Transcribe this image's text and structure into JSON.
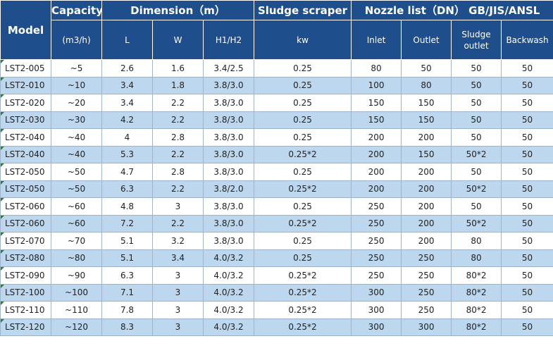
{
  "header": {
    "model": "Model",
    "capacity": "Capacity",
    "dimension": "Dimension（m）",
    "sludge_scraper": "Sludge scraper",
    "nozzle_list": "Nozzle list（DN） GB/JIS/ANSL",
    "capacity_unit": "(m3/h)",
    "l": "L",
    "w": "W",
    "h": "H1/H2",
    "kw": "kw",
    "inlet": "Inlet",
    "outlet": "Outlet",
    "sludge_outlet_1": "Sludge",
    "sludge_outlet_2": "outlet",
    "backwash": "Backwash"
  },
  "rows": [
    [
      "LST2-005",
      "~5",
      "2.6",
      "1.6",
      "3.4/2.5",
      "0.25",
      "80",
      "50",
      "50",
      "50"
    ],
    [
      "LST2-010",
      "~10",
      "3.4",
      "1.8",
      "3.8/3.0",
      "0.25",
      "100",
      "80",
      "50",
      "50"
    ],
    [
      "LST2-020",
      "~20",
      "3.4",
      "2.2",
      "3.8/3.0",
      "0.25",
      "150",
      "150",
      "50",
      "50"
    ],
    [
      "LST2-030",
      "~30",
      "4.2",
      "2.2",
      "3.8/3.0",
      "0.25",
      "150",
      "150",
      "50",
      "50"
    ],
    [
      "LST2-040",
      "~40",
      "4",
      "2.8",
      "3.8/3.0",
      "0.25",
      "200",
      "200",
      "50",
      "50"
    ],
    [
      "LST2-040",
      "~40",
      "5.3",
      "2.2",
      "3.8/3.0",
      "0.25*2",
      "200",
      "150",
      "50*2",
      "50"
    ],
    [
      "LST2-050",
      "~50",
      "4.7",
      "2.8",
      "3.8/3.0",
      "0.25",
      "200",
      "200",
      "50",
      "50"
    ],
    [
      "LST2-050",
      "~50",
      "6.3",
      "2.2",
      "3.8/2.0",
      "0.25*2",
      "200",
      "200",
      "50*2",
      "50"
    ],
    [
      "LST2-060",
      "~60",
      "4.8",
      "3",
      "3.8/3.0",
      "0.25",
      "250",
      "200",
      "50",
      "50"
    ],
    [
      "LST2-060",
      "~60",
      "7.2",
      "2.2",
      "3.8/3.0",
      "0.25*2",
      "250",
      "200",
      "50*2",
      "50"
    ],
    [
      "LST2-070",
      "~70",
      "5.1",
      "3.2",
      "3.8/3.0",
      "0.25",
      "250",
      "200",
      "80",
      "50"
    ],
    [
      "LST2-080",
      "~80",
      "5.1",
      "3.4",
      "4.0/3.2",
      "0.25",
      "250",
      "250",
      "80",
      "50"
    ],
    [
      "LST2-090",
      "~90",
      "6.3",
      "3",
      "4.0/3.2",
      "0.25*2",
      "250",
      "250",
      "80*2",
      "50"
    ],
    [
      "LST2-100",
      "~100",
      "7.1",
      "3",
      "4.0/3.2",
      "0.25*2",
      "300",
      "250",
      "80*2",
      "50"
    ],
    [
      "LST2-110",
      "~110",
      "7.8",
      "3",
      "4.0/3.2",
      "0.25*2",
      "300",
      "250",
      "80*2",
      "50"
    ],
    [
      "LST2-120",
      "~120",
      "8.3",
      "3",
      "4.0/3.2",
      "0.25*2",
      "300",
      "300",
      "80*2",
      "50"
    ]
  ]
}
